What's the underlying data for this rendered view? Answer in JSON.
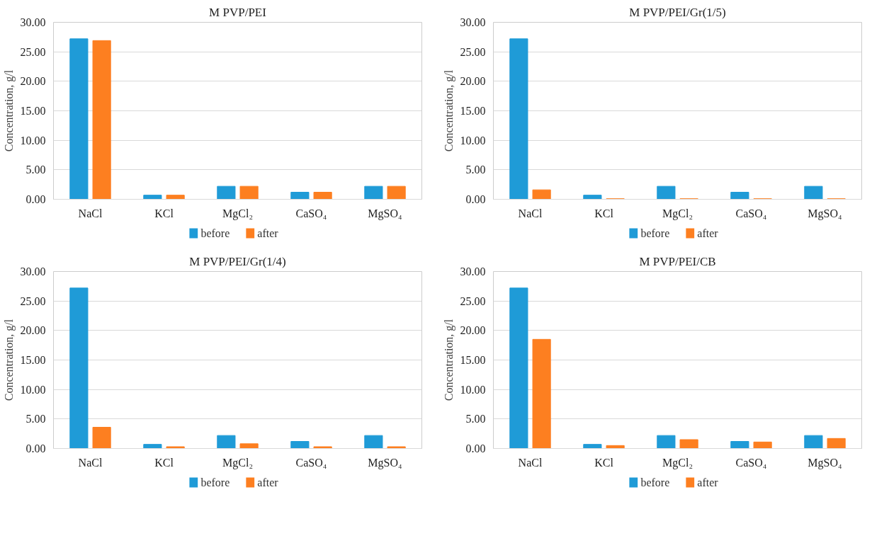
{
  "chart_data": [
    {
      "type": "bar",
      "title": "M PVP/PEI",
      "ylabel": "Concentration, g/l",
      "categories": [
        "NaCl",
        "KCl",
        "MgCl₂",
        "CaSO₄",
        "MgSO₄"
      ],
      "series": [
        {
          "name": "before",
          "color": "#1f9bd7",
          "values": [
            27.2,
            0.7,
            2.2,
            1.2,
            2.2
          ]
        },
        {
          "name": "after",
          "color": "#fd7f20",
          "values": [
            26.9,
            0.7,
            2.2,
            1.2,
            2.2
          ]
        }
      ],
      "ylim": [
        0,
        30
      ],
      "yticks": [
        {
          "value": 0,
          "label": "0.00"
        },
        {
          "value": 5,
          "label": "5.00"
        },
        {
          "value": 10,
          "label": "10.00"
        },
        {
          "value": 15,
          "label": "15.00"
        },
        {
          "value": 20,
          "label": "20.00"
        },
        {
          "value": 25,
          "label": "25.00"
        },
        {
          "value": 30,
          "label": "30.00"
        }
      ],
      "grid": "y",
      "legend": "bottom"
    },
    {
      "type": "bar",
      "title": "M PVP/PEI/Gr(1/5)",
      "ylabel": "Concentration, g/l",
      "categories": [
        "NaCl",
        "KCl",
        "MgCl₂",
        "CaSO₄",
        "MgSO₄"
      ],
      "series": [
        {
          "name": "before",
          "color": "#1f9bd7",
          "values": [
            27.2,
            0.7,
            2.2,
            1.2,
            2.2
          ]
        },
        {
          "name": "after",
          "color": "#fd7f20",
          "values": [
            1.6,
            0.1,
            0.1,
            0.1,
            0.1
          ]
        }
      ],
      "ylim": [
        0,
        30
      ],
      "yticks": [
        {
          "value": 0,
          "label": "0.00"
        },
        {
          "value": 5,
          "label": "5.00"
        },
        {
          "value": 10,
          "label": "10.00"
        },
        {
          "value": 15,
          "label": "15.00"
        },
        {
          "value": 20,
          "label": "20.00"
        },
        {
          "value": 25,
          "label": "25.00"
        },
        {
          "value": 30,
          "label": "30.00"
        }
      ],
      "grid": "y",
      "legend": "bottom"
    },
    {
      "type": "bar",
      "title": "M PVP/PEI/Gr(1/4)",
      "ylabel": "Concentration, g/l",
      "categories": [
        "NaCl",
        "KCl",
        "MgCl₂",
        "CaSO₄",
        "MgSO₄"
      ],
      "series": [
        {
          "name": "before",
          "color": "#1f9bd7",
          "values": [
            27.2,
            0.7,
            2.2,
            1.2,
            2.2
          ]
        },
        {
          "name": "after",
          "color": "#fd7f20",
          "values": [
            3.6,
            0.3,
            0.8,
            0.3,
            0.3
          ]
        }
      ],
      "ylim": [
        0,
        30
      ],
      "yticks": [
        {
          "value": 0,
          "label": "0.00"
        },
        {
          "value": 5,
          "label": "5.00"
        },
        {
          "value": 10,
          "label": "10.00"
        },
        {
          "value": 15,
          "label": "15.00"
        },
        {
          "value": 20,
          "label": "20.00"
        },
        {
          "value": 25,
          "label": "25.00"
        },
        {
          "value": 30,
          "label": "30.00"
        }
      ],
      "grid": "y",
      "legend": "bottom"
    },
    {
      "type": "bar",
      "title": "M PVP/PEI/CB",
      "ylabel": "Concentration, g/l",
      "categories": [
        "NaCl",
        "KCl",
        "MgCl₂",
        "CaSO₄",
        "MgSO₄"
      ],
      "series": [
        {
          "name": "before",
          "color": "#1f9bd7",
          "values": [
            27.2,
            0.7,
            2.2,
            1.2,
            2.2
          ]
        },
        {
          "name": "after",
          "color": "#fd7f20",
          "values": [
            18.5,
            0.5,
            1.5,
            1.1,
            1.7
          ]
        }
      ],
      "ylim": [
        0,
        30
      ],
      "yticks": [
        {
          "value": 0,
          "label": "0.00"
        },
        {
          "value": 5,
          "label": "5.00"
        },
        {
          "value": 10,
          "label": "10.00"
        },
        {
          "value": 15,
          "label": "15.00"
        },
        {
          "value": 20,
          "label": "20.00"
        },
        {
          "value": 25,
          "label": "25.00"
        },
        {
          "value": 30,
          "label": "30.00"
        }
      ],
      "grid": "y",
      "legend": "bottom"
    }
  ]
}
